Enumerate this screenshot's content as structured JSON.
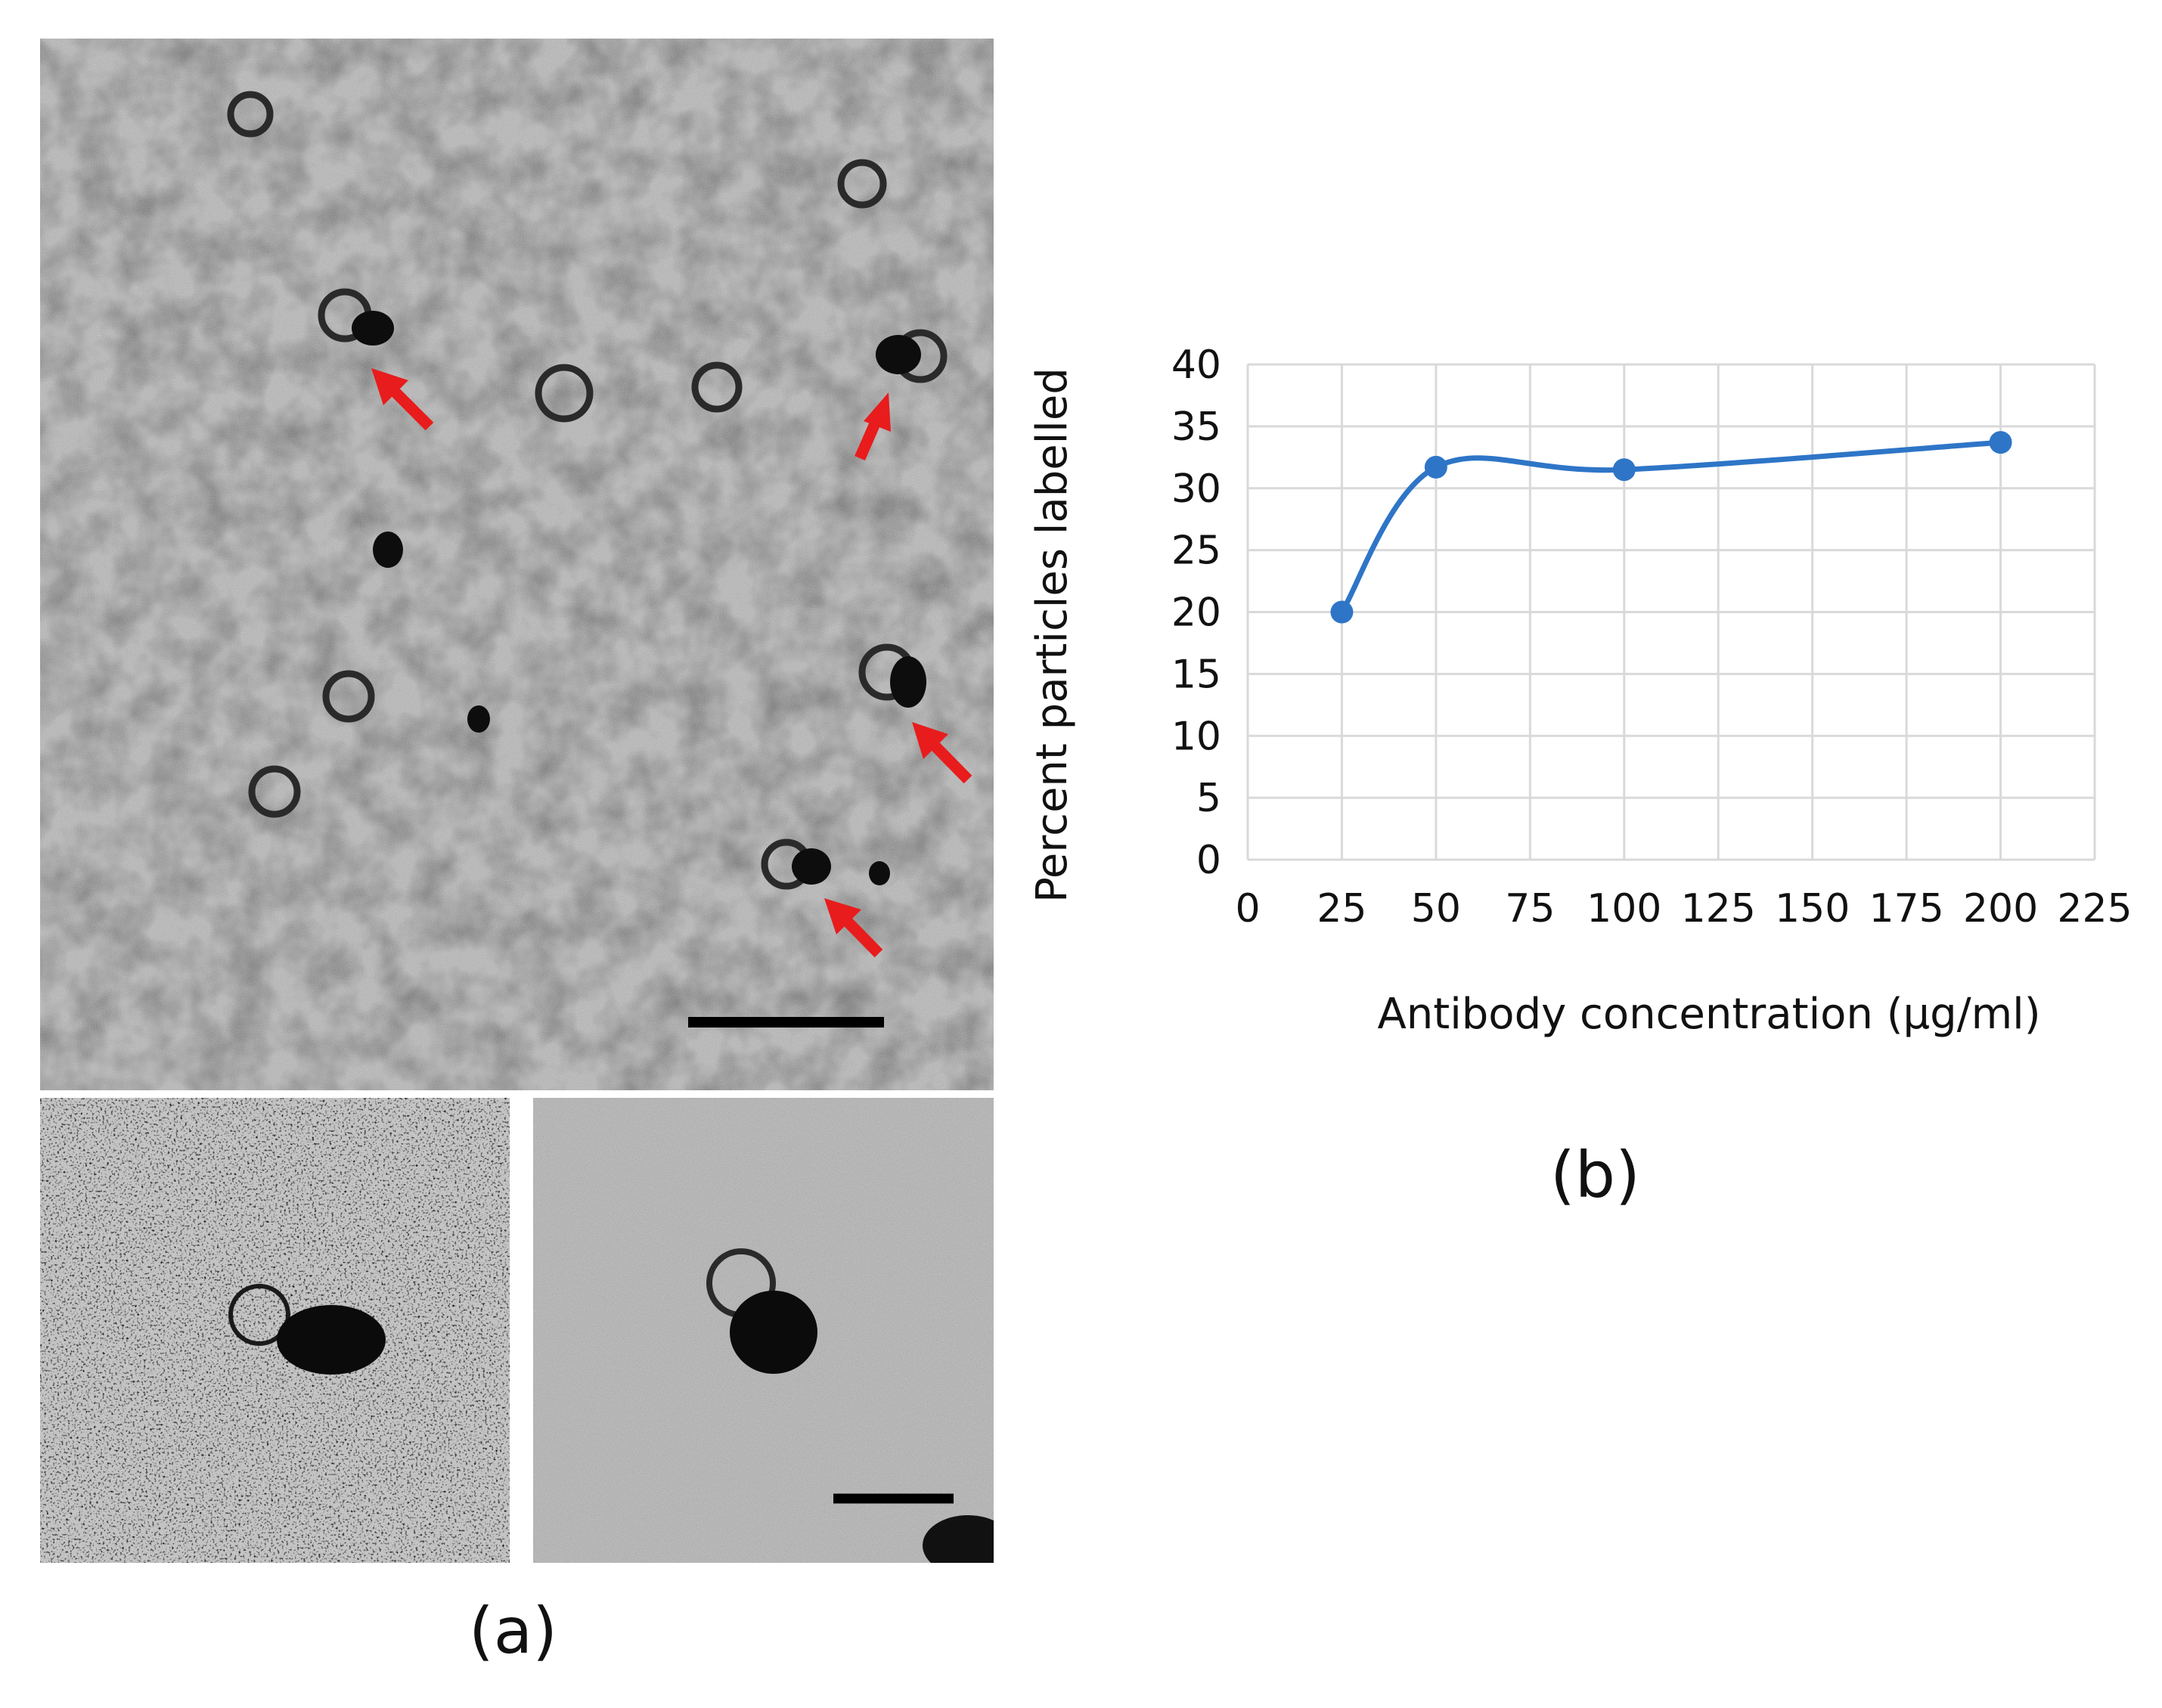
{
  "panel_a": {
    "label": "(a)"
  },
  "panel_b": {
    "label": "(b)"
  },
  "chart_data": {
    "type": "line",
    "title": "",
    "xlabel": "Antibody concentration (μg/ml)",
    "ylabel": "Percent particles labelled",
    "xlim": [
      0,
      225
    ],
    "ylim": [
      0,
      40
    ],
    "xticks": [
      0,
      25,
      50,
      75,
      100,
      125,
      150,
      175,
      200,
      225
    ],
    "yticks": [
      0,
      5,
      10,
      15,
      20,
      25,
      30,
      35,
      40
    ],
    "grid": true,
    "smooth": true,
    "series": [
      {
        "x": [
          25,
          50,
          100,
          200
        ],
        "y": [
          20,
          31.7,
          31.5,
          33.7
        ]
      }
    ]
  },
  "colors": {
    "series": "#2e75c7",
    "grid": "#d9d9d9",
    "arrow": "#e81c1c",
    "background": "#ffffff"
  }
}
